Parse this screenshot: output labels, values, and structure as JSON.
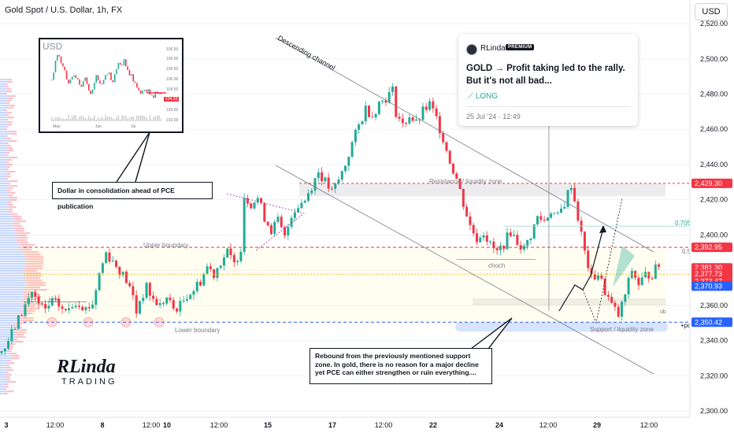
{
  "header": {
    "title": "Gold Spot / U.S. Dollar, 1h, FX",
    "currency_button": "USD"
  },
  "idea_card": {
    "author": "RLinda",
    "badge": "PREMIUM",
    "title": "GOLD → Profit taking led to the rally. But it's not all bad...",
    "direction": "LONG",
    "date": "25 Jul '24 · 12:49"
  },
  "inset": {
    "symbol": "USD",
    "price_labels": [
      "106.50",
      "106.00",
      "105.50",
      "105.00",
      "104.50",
      "104.00",
      "103.50",
      "103.00"
    ],
    "current_label": "104.33",
    "time_labels": [
      "May",
      "Jun",
      "Jul"
    ]
  },
  "callouts": {
    "dollar_note": "Dollar in consolidation ahead of PCE publication",
    "rebound_note": "Rebound from the previously mentioned support zone. In gold, there is no reason for a major decline yet PCE can either strengthen or ruin everything...."
  },
  "annotations": {
    "descending_channel": "Descending channel",
    "resistance_zone": "Resistance / liquidity zone",
    "upper_boundary": "Upper boundary",
    "lower_boundary": "Lower boundary",
    "support_zone": "Support / liquidity zone",
    "choch": "choch",
    "bos": "bos",
    "ob": "ob",
    "poi": "+poi",
    "fib_0705": "0.705",
    "fib_05": "0.5"
  },
  "logo": {
    "line1": "RLinda",
    "line2": "TRADING"
  },
  "chart_data": {
    "type": "candlestick",
    "title": "Gold Spot / U.S. Dollar, 1h, FX",
    "y_axis": {
      "ticks": [
        2300,
        2320,
        2340,
        2360,
        2380,
        2400,
        2420,
        2440,
        2460,
        2480,
        2500,
        2520
      ],
      "range": [
        2300,
        2522
      ]
    },
    "x_axis": {
      "tick_labels": [
        "3",
        "12:00",
        "8",
        "12:00",
        "10",
        "12:00",
        "15",
        "17",
        "12:00",
        "22",
        "24",
        "12:00",
        "29",
        "12:00"
      ]
    },
    "price_path": [
      [
        0,
        2333
      ],
      [
        2,
        2336
      ],
      [
        4,
        2344
      ],
      [
        6,
        2352
      ],
      [
        8,
        2360
      ],
      [
        10,
        2368
      ],
      [
        12,
        2360
      ],
      [
        14,
        2357
      ],
      [
        16,
        2362
      ],
      [
        18,
        2360
      ],
      [
        20,
        2356
      ],
      [
        22,
        2361
      ],
      [
        24,
        2362
      ],
      [
        26,
        2358
      ],
      [
        28,
        2361
      ],
      [
        30,
        2378
      ],
      [
        32,
        2390
      ],
      [
        34,
        2385
      ],
      [
        36,
        2380
      ],
      [
        38,
        2374
      ],
      [
        40,
        2365
      ],
      [
        41,
        2356
      ],
      [
        42,
        2363
      ],
      [
        44,
        2370
      ],
      [
        46,
        2363
      ],
      [
        48,
        2360
      ],
      [
        50,
        2364
      ],
      [
        52,
        2358
      ],
      [
        54,
        2360
      ],
      [
        56,
        2366
      ],
      [
        58,
        2369
      ],
      [
        60,
        2374
      ],
      [
        62,
        2382
      ],
      [
        64,
        2378
      ],
      [
        66,
        2385
      ],
      [
        68,
        2390
      ],
      [
        70,
        2383
      ],
      [
        72,
        2393
      ],
      [
        73,
        2422
      ],
      [
        75,
        2418
      ],
      [
        77,
        2421
      ],
      [
        79,
        2410
      ],
      [
        81,
        2403
      ],
      [
        83,
        2408
      ],
      [
        85,
        2398
      ],
      [
        87,
        2412
      ],
      [
        89,
        2417
      ],
      [
        91,
        2420
      ],
      [
        93,
        2428
      ],
      [
        95,
        2436
      ],
      [
        97,
        2430
      ],
      [
        99,
        2424
      ],
      [
        101,
        2431
      ],
      [
        103,
        2440
      ],
      [
        105,
        2452
      ],
      [
        107,
        2462
      ],
      [
        109,
        2472
      ],
      [
        111,
        2468
      ],
      [
        113,
        2475
      ],
      [
        115,
        2478
      ],
      [
        117,
        2482
      ],
      [
        118,
        2470
      ],
      [
        120,
        2462
      ],
      [
        122,
        2468
      ],
      [
        124,
        2463
      ],
      [
        126,
        2470
      ],
      [
        128,
        2474
      ],
      [
        130,
        2466
      ],
      [
        132,
        2455
      ],
      [
        134,
        2442
      ],
      [
        136,
        2432
      ],
      [
        138,
        2418
      ],
      [
        140,
        2405
      ],
      [
        142,
        2398
      ],
      [
        144,
        2402
      ],
      [
        146,
        2394
      ],
      [
        148,
        2390
      ],
      [
        150,
        2395
      ],
      [
        152,
        2402
      ],
      [
        154,
        2396
      ],
      [
        156,
        2392
      ],
      [
        158,
        2400
      ],
      [
        160,
        2410
      ],
      [
        162,
        2408
      ],
      [
        164,
        2414
      ],
      [
        166,
        2410
      ],
      [
        168,
        2418
      ],
      [
        170,
        2429
      ],
      [
        172,
        2410
      ],
      [
        174,
        2390
      ],
      [
        176,
        2375
      ],
      [
        178,
        2378
      ],
      [
        180,
        2368
      ],
      [
        182,
        2360
      ],
      [
        184,
        2354
      ],
      [
        186,
        2366
      ],
      [
        188,
        2380
      ],
      [
        190,
        2372
      ],
      [
        192,
        2377
      ],
      [
        194,
        2378
      ],
      [
        196,
        2383
      ]
    ],
    "price_labels": [
      {
        "value": 2429.3,
        "label": "2,429.30",
        "color": "#f23645"
      },
      {
        "value": 2392.95,
        "label": "2,392.95",
        "color": "#f23645"
      },
      {
        "value": 2381.3,
        "label": "2,381.30",
        "color": "#f23645"
      },
      {
        "value": 2377.73,
        "label": "2,377.73",
        "color": "#f23645"
      },
      {
        "value": 2373.47,
        "label": "2,373.47",
        "color": "#f23645"
      },
      {
        "value": 2370.93,
        "label": "2,370.93",
        "color": "#2962ff"
      },
      {
        "value": 2350.42,
        "label": "2,350.42",
        "color": "#2962ff"
      }
    ],
    "levels": {
      "resistance_zone": [
        2422,
        2429.3
      ],
      "upper_boundary": 2392.95,
      "lower_boundary": 2350.42,
      "support_zone": [
        2346,
        2350.42
      ],
      "fib_0705": 2405,
      "fib_05": 2392.95
    },
    "colors": {
      "up": "#22ab94",
      "down": "#f23645",
      "upper_line": "#f23645",
      "lower_line": "#2962ff"
    }
  }
}
